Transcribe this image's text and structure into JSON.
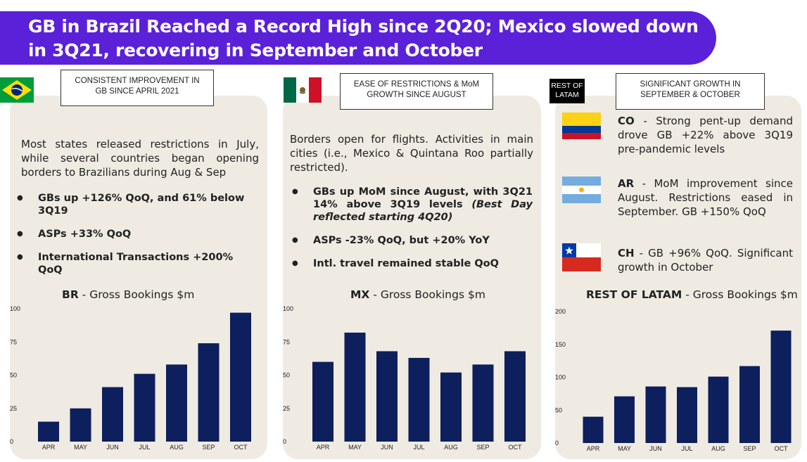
{
  "title": {
    "line1": "GB in Brazil Reached a Record High since 2Q20; Mexico slowed down",
    "line2": "in 3Q21, recovering in September and October"
  },
  "colors": {
    "banner": "#5b21d9",
    "bar": "#0d1f5c",
    "panel": "#efebe3"
  },
  "brazil": {
    "flag_icon": "brazil-flag-icon",
    "tag": [
      "CONSISTENT IMPROVEMENT IN",
      "GB SINCE APRIL 2021"
    ],
    "body": "Most states released restrictions in July, while several countries began opening borders to Brazilians during Aug & Sep",
    "bullets": [
      "GBs up +126% QoQ, and 61% below 3Q19",
      "ASPs +33% QoQ",
      "International Transactions +200% QoQ"
    ],
    "chart_title_bold": "BR",
    "chart_title_rest": " - Gross Bookings $m"
  },
  "mexico": {
    "flag_icon": "mexico-flag-icon",
    "tag": [
      "EASE OF RESTRICTIONS & MoM",
      "GROWTH SINCE AUGUST"
    ],
    "body": "Borders open for flights. Activities in main cities (i.e., Mexico & Quintana Roo partially restricted).",
    "bullet1_main": "GBs up MoM since August, with 3Q21 14% above 3Q19 levels ",
    "bullet1_italic": "(Best Day reflected starting 4Q20)",
    "bullet2": "ASPs -23% QoQ, but +20% YoY",
    "bullet3": "Intl. travel remained stable QoQ",
    "chart_title_bold": "MX",
    "chart_title_rest": " - Gross Bookings $m"
  },
  "latam": {
    "label": [
      "REST OF",
      "LATAM"
    ],
    "tag": [
      "SIGNIFICANT GROWTH IN",
      "SEPTEMBER & OCTOBER"
    ],
    "countries": [
      {
        "code": "CO",
        "text": " - Strong pent-up demand drove GB +22% above 3Q19 pre-pandemic levels",
        "flag_icon": "colombia-flag-icon"
      },
      {
        "code": "AR",
        "text": " - MoM improvement since August. Restrictions eased in September. GB +150% QoQ",
        "flag_icon": "argentina-flag-icon"
      },
      {
        "code": "CH",
        "text": " - GB +96% QoQ. Significant growth in October",
        "flag_icon": "chile-flag-icon"
      }
    ],
    "chart_title_bold": "REST OF LATAM",
    "chart_title_rest": " - Gross Bookings $m"
  },
  "chart_data": [
    {
      "type": "bar",
      "title": "BR - Gross Bookings $m",
      "categories": [
        "APR",
        "MAY",
        "JUN",
        "JUL",
        "AUG",
        "SEP",
        "OCT"
      ],
      "values": [
        15,
        25,
        41,
        51,
        58,
        74,
        97
      ],
      "yticks": [
        0,
        25,
        50,
        75,
        100
      ],
      "ylim": [
        0,
        100
      ],
      "grid": false
    },
    {
      "type": "bar",
      "title": "MX - Gross Bookings $m",
      "categories": [
        "APR",
        "MAY",
        "JUN",
        "JUL",
        "AUG",
        "SEP",
        "OCT"
      ],
      "values": [
        60,
        82,
        68,
        63,
        52,
        58,
        68
      ],
      "yticks": [
        0,
        25,
        50,
        75,
        100
      ],
      "ylim": [
        0,
        100
      ],
      "grid": false
    },
    {
      "type": "bar",
      "title": "REST OF LATAM - Gross Bookings $m",
      "categories": [
        "APR",
        "MAY",
        "JUN",
        "JUL",
        "AUG",
        "SEP",
        "OCT"
      ],
      "values": [
        40,
        71,
        86,
        85,
        101,
        117,
        171
      ],
      "yticks": [
        0,
        50,
        100,
        150,
        200
      ],
      "ylim": [
        0,
        200
      ],
      "grid": false
    }
  ]
}
